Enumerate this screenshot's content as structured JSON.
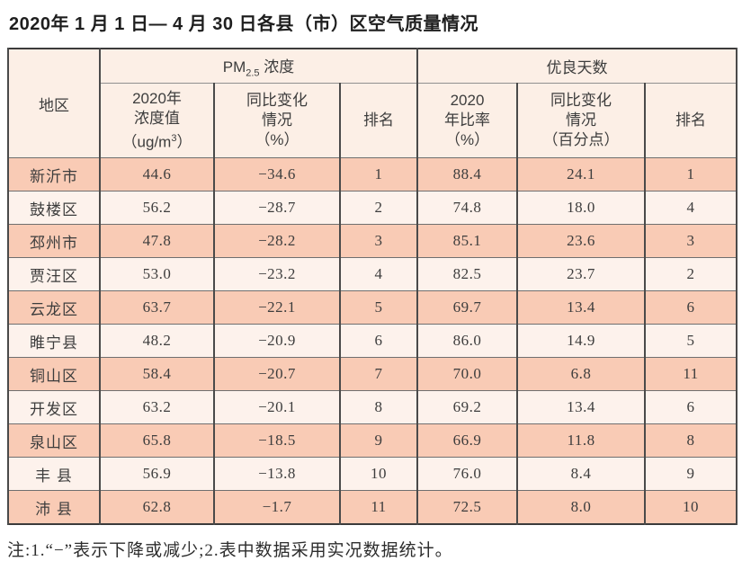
{
  "title": "2020年 1 月 1 日— 4 月 30 日各县（市）区空气质量情况",
  "table": {
    "region_header": "地区",
    "group_headers": {
      "pm25_prefix": "PM",
      "pm25_sub": "2.5",
      "pm25_suffix": " 浓度",
      "good_days": "优良天数"
    },
    "sub_headers": {
      "pm_value": {
        "line1": "2020年",
        "line2": "浓度值",
        "unit_prefix": "（ug/m",
        "unit_sup": "3",
        "unit_suffix": "）"
      },
      "pm_change": {
        "line1": "同比变化",
        "line2": "情况",
        "line3": "（%）"
      },
      "pm_rank": "排名",
      "gd_rate": {
        "line1": "2020",
        "line2": "年比率",
        "line3": "（%）"
      },
      "gd_change": {
        "line1": "同比变化",
        "line2": "情况",
        "line3": "（百分点）"
      },
      "gd_rank": "排名"
    },
    "rows": [
      {
        "region": "新沂市",
        "pm_value": "44.6",
        "pm_change": "−34.6",
        "pm_rank": "1",
        "gd_rate": "88.4",
        "gd_change": "24.1",
        "gd_rank": "1"
      },
      {
        "region": "鼓楼区",
        "pm_value": "56.2",
        "pm_change": "−28.7",
        "pm_rank": "2",
        "gd_rate": "74.8",
        "gd_change": "18.0",
        "gd_rank": "4"
      },
      {
        "region": "邳州市",
        "pm_value": "47.8",
        "pm_change": "−28.2",
        "pm_rank": "3",
        "gd_rate": "85.1",
        "gd_change": "23.6",
        "gd_rank": "3"
      },
      {
        "region": "贾汪区",
        "pm_value": "53.0",
        "pm_change": "−23.2",
        "pm_rank": "4",
        "gd_rate": "82.5",
        "gd_change": "23.7",
        "gd_rank": "2"
      },
      {
        "region": "云龙区",
        "pm_value": "63.7",
        "pm_change": "−22.1",
        "pm_rank": "5",
        "gd_rate": "69.7",
        "gd_change": "13.4",
        "gd_rank": "6"
      },
      {
        "region": "睢宁县",
        "pm_value": "48.2",
        "pm_change": "−20.9",
        "pm_rank": "6",
        "gd_rate": "86.0",
        "gd_change": "14.9",
        "gd_rank": "5"
      },
      {
        "region": "铜山区",
        "pm_value": "58.4",
        "pm_change": "−20.7",
        "pm_rank": "7",
        "gd_rate": "70.0",
        "gd_change": "6.8",
        "gd_rank": "11"
      },
      {
        "region": "开发区",
        "pm_value": "63.2",
        "pm_change": "−20.1",
        "pm_rank": "8",
        "gd_rate": "69.2",
        "gd_change": "13.4",
        "gd_rank": "6"
      },
      {
        "region": "泉山区",
        "pm_value": "65.8",
        "pm_change": "−18.5",
        "pm_rank": "9",
        "gd_rate": "66.9",
        "gd_change": "11.8",
        "gd_rank": "8"
      },
      {
        "region": "丰 县",
        "pm_value": "56.9",
        "pm_change": "−13.8",
        "pm_rank": "10",
        "gd_rate": "76.0",
        "gd_change": "8.4",
        "gd_rank": "9"
      },
      {
        "region": "沛 县",
        "pm_value": "62.8",
        "pm_change": "−1.7",
        "pm_rank": "11",
        "gd_rate": "72.5",
        "gd_change": "8.0",
        "gd_rank": "10"
      }
    ]
  },
  "note": "注:1.“−”表示下降或减少;2.表中数据采用实况数据统计。",
  "colors": {
    "row_odd": "#f9cbb5",
    "row_even": "#fdf2ec",
    "header_bg": "#fcefe6",
    "border": "#3b3b3b",
    "text": "#3d3d3d"
  }
}
